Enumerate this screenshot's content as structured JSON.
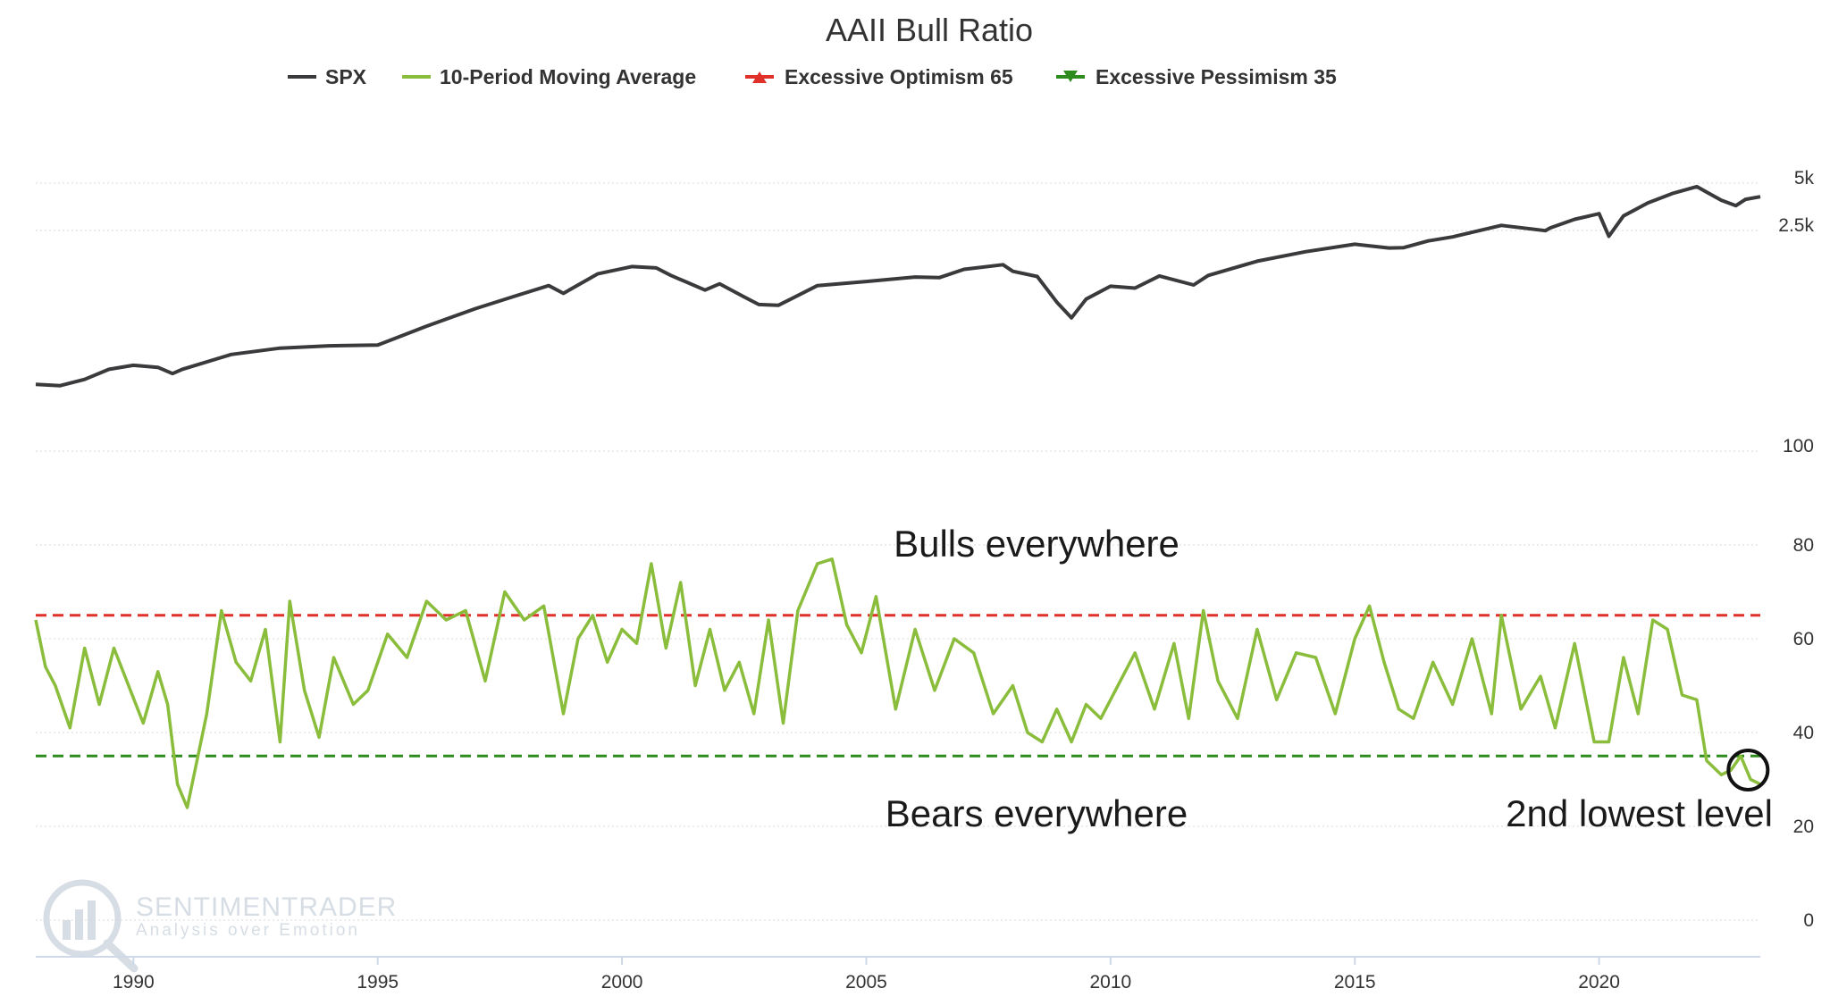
{
  "chart_data": {
    "type": "line",
    "title": "AAII Bull Ratio",
    "legend": {
      "placement": "top-center",
      "items": [
        {
          "label": "SPX",
          "color": "#3a3a3c",
          "marker": "line"
        },
        {
          "label": "10-Period Moving Average",
          "color": "#8bbd3c",
          "marker": "line"
        },
        {
          "label": "Excessive Optimism 65",
          "color": "#e0302a",
          "marker": "triangle-up"
        },
        {
          "label": "Excessive Pessimism 35",
          "color": "#2e8b1e",
          "marker": "triangle-down"
        }
      ]
    },
    "x_axis": {
      "type": "year",
      "range": [
        1988,
        2023.3
      ],
      "ticks": [
        "1990",
        "1995",
        "2000",
        "2005",
        "2010",
        "2015",
        "2020"
      ]
    },
    "spx_panel": {
      "y_ticks": [
        "5k",
        "2.5k",
        "100"
      ],
      "scale": "log",
      "ylim": [
        100,
        5000
      ],
      "grid": true,
      "series": {
        "name": "SPX",
        "color": "#3a3a3c",
        "x": [
          1988.0,
          1988.5,
          1989.0,
          1989.5,
          1990.0,
          1990.5,
          1990.8,
          1991.0,
          1992.0,
          1993.0,
          1994.0,
          1995.0,
          1996.0,
          1997.0,
          1997.8,
          1998.5,
          1998.8,
          1999.5,
          2000.2,
          2000.7,
          2001.0,
          2001.7,
          2002.0,
          2002.5,
          2002.8,
          2003.2,
          2004.0,
          2005.0,
          2006.0,
          2006.5,
          2007.0,
          2007.8,
          2008.0,
          2008.5,
          2008.9,
          2009.2,
          2009.5,
          2010.0,
          2010.5,
          2011.0,
          2011.7,
          2012.0,
          2013.0,
          2014.0,
          2015.0,
          2015.7,
          2016.0,
          2016.5,
          2017.0,
          2018.0,
          2018.9,
          2019.0,
          2019.5,
          2020.0,
          2020.2,
          2020.5,
          2021.0,
          2021.5,
          2022.0,
          2022.5,
          2022.8,
          2023.0,
          2023.3
        ],
        "values": [
          265,
          260,
          285,
          330,
          350,
          340,
          310,
          330,
          410,
          450,
          465,
          470,
          620,
          800,
          960,
          1120,
          1000,
          1330,
          1480,
          1450,
          1300,
          1050,
          1150,
          950,
          850,
          840,
          1120,
          1190,
          1270,
          1260,
          1420,
          1520,
          1380,
          1280,
          880,
          700,
          920,
          1110,
          1080,
          1290,
          1130,
          1300,
          1600,
          1840,
          2050,
          1940,
          1950,
          2150,
          2280,
          2700,
          2500,
          2600,
          2950,
          3200,
          2300,
          3100,
          3750,
          4300,
          4750,
          3900,
          3600,
          3950,
          4100
        ]
      }
    },
    "ratio_panel": {
      "y_ticks": [
        "0",
        "20",
        "40",
        "60",
        "80"
      ],
      "ylim": [
        0,
        100
      ],
      "grid": true,
      "series": {
        "name": "10-Period Moving Average",
        "color": "#8bbd3c",
        "x": [
          1988.0,
          1988.2,
          1988.4,
          1988.7,
          1989.0,
          1989.3,
          1989.6,
          1989.9,
          1990.2,
          1990.5,
          1990.7,
          1990.9,
          1991.1,
          1991.5,
          1991.8,
          1992.1,
          1992.4,
          1992.7,
          1993.0,
          1993.2,
          1993.5,
          1993.8,
          1994.1,
          1994.5,
          1994.8,
          1995.2,
          1995.6,
          1996.0,
          1996.4,
          1996.8,
          1997.2,
          1997.6,
          1998.0,
          1998.4,
          1998.8,
          1999.1,
          1999.4,
          1999.7,
          2000.0,
          2000.3,
          2000.6,
          2000.9,
          2001.2,
          2001.5,
          2001.8,
          2002.1,
          2002.4,
          2002.7,
          2003.0,
          2003.3,
          2003.6,
          2004.0,
          2004.3,
          2004.6,
          2004.9,
          2005.2,
          2005.6,
          2006.0,
          2006.4,
          2006.8,
          2007.2,
          2007.6,
          2008.0,
          2008.3,
          2008.6,
          2008.9,
          2009.2,
          2009.5,
          2009.8,
          2010.1,
          2010.5,
          2010.9,
          2011.3,
          2011.6,
          2011.9,
          2012.2,
          2012.6,
          2013.0,
          2013.4,
          2013.8,
          2014.2,
          2014.6,
          2015.0,
          2015.3,
          2015.6,
          2015.9,
          2016.2,
          2016.6,
          2017.0,
          2017.4,
          2017.8,
          2018.0,
          2018.4,
          2018.8,
          2019.1,
          2019.5,
          2019.9,
          2020.2,
          2020.5,
          2020.8,
          2021.1,
          2021.4,
          2021.7,
          2022.0,
          2022.2,
          2022.5,
          2022.7,
          2022.9,
          2023.1,
          2023.3
        ],
        "values": [
          64,
          54,
          50,
          41,
          58,
          46,
          58,
          50,
          42,
          53,
          46,
          29,
          24,
          44,
          66,
          55,
          51,
          62,
          38,
          68,
          49,
          39,
          56,
          46,
          49,
          61,
          56,
          68,
          64,
          66,
          51,
          70,
          64,
          67,
          44,
          60,
          65,
          55,
          62,
          59,
          76,
          58,
          72,
          50,
          62,
          49,
          55,
          44,
          64,
          42,
          66,
          76,
          77,
          63,
          57,
          69,
          45,
          62,
          49,
          60,
          57,
          44,
          50,
          40,
          38,
          45,
          38,
          46,
          43,
          49,
          57,
          45,
          59,
          43,
          66,
          51,
          43,
          62,
          47,
          57,
          56,
          44,
          60,
          67,
          55,
          45,
          43,
          55,
          46,
          60,
          44,
          65,
          45,
          52,
          41,
          59,
          38,
          38,
          56,
          44,
          64,
          62,
          48,
          47,
          34,
          31,
          32,
          35,
          30,
          29
        ]
      },
      "reference_lines": [
        {
          "name": "Excessive Optimism 65",
          "value": 65,
          "color": "#e0302a",
          "style": "dashed"
        },
        {
          "name": "Excessive Pessimism 35",
          "value": 35,
          "color": "#2e8b1e",
          "style": "dashed"
        }
      ]
    },
    "annotations": {
      "bulls": "Bulls everywhere",
      "bears": "Bears everywhere",
      "low": "2nd lowest level"
    }
  },
  "watermark": {
    "brand": "SENTIMENTRADER",
    "tagline": "Analysis over Emotion"
  }
}
